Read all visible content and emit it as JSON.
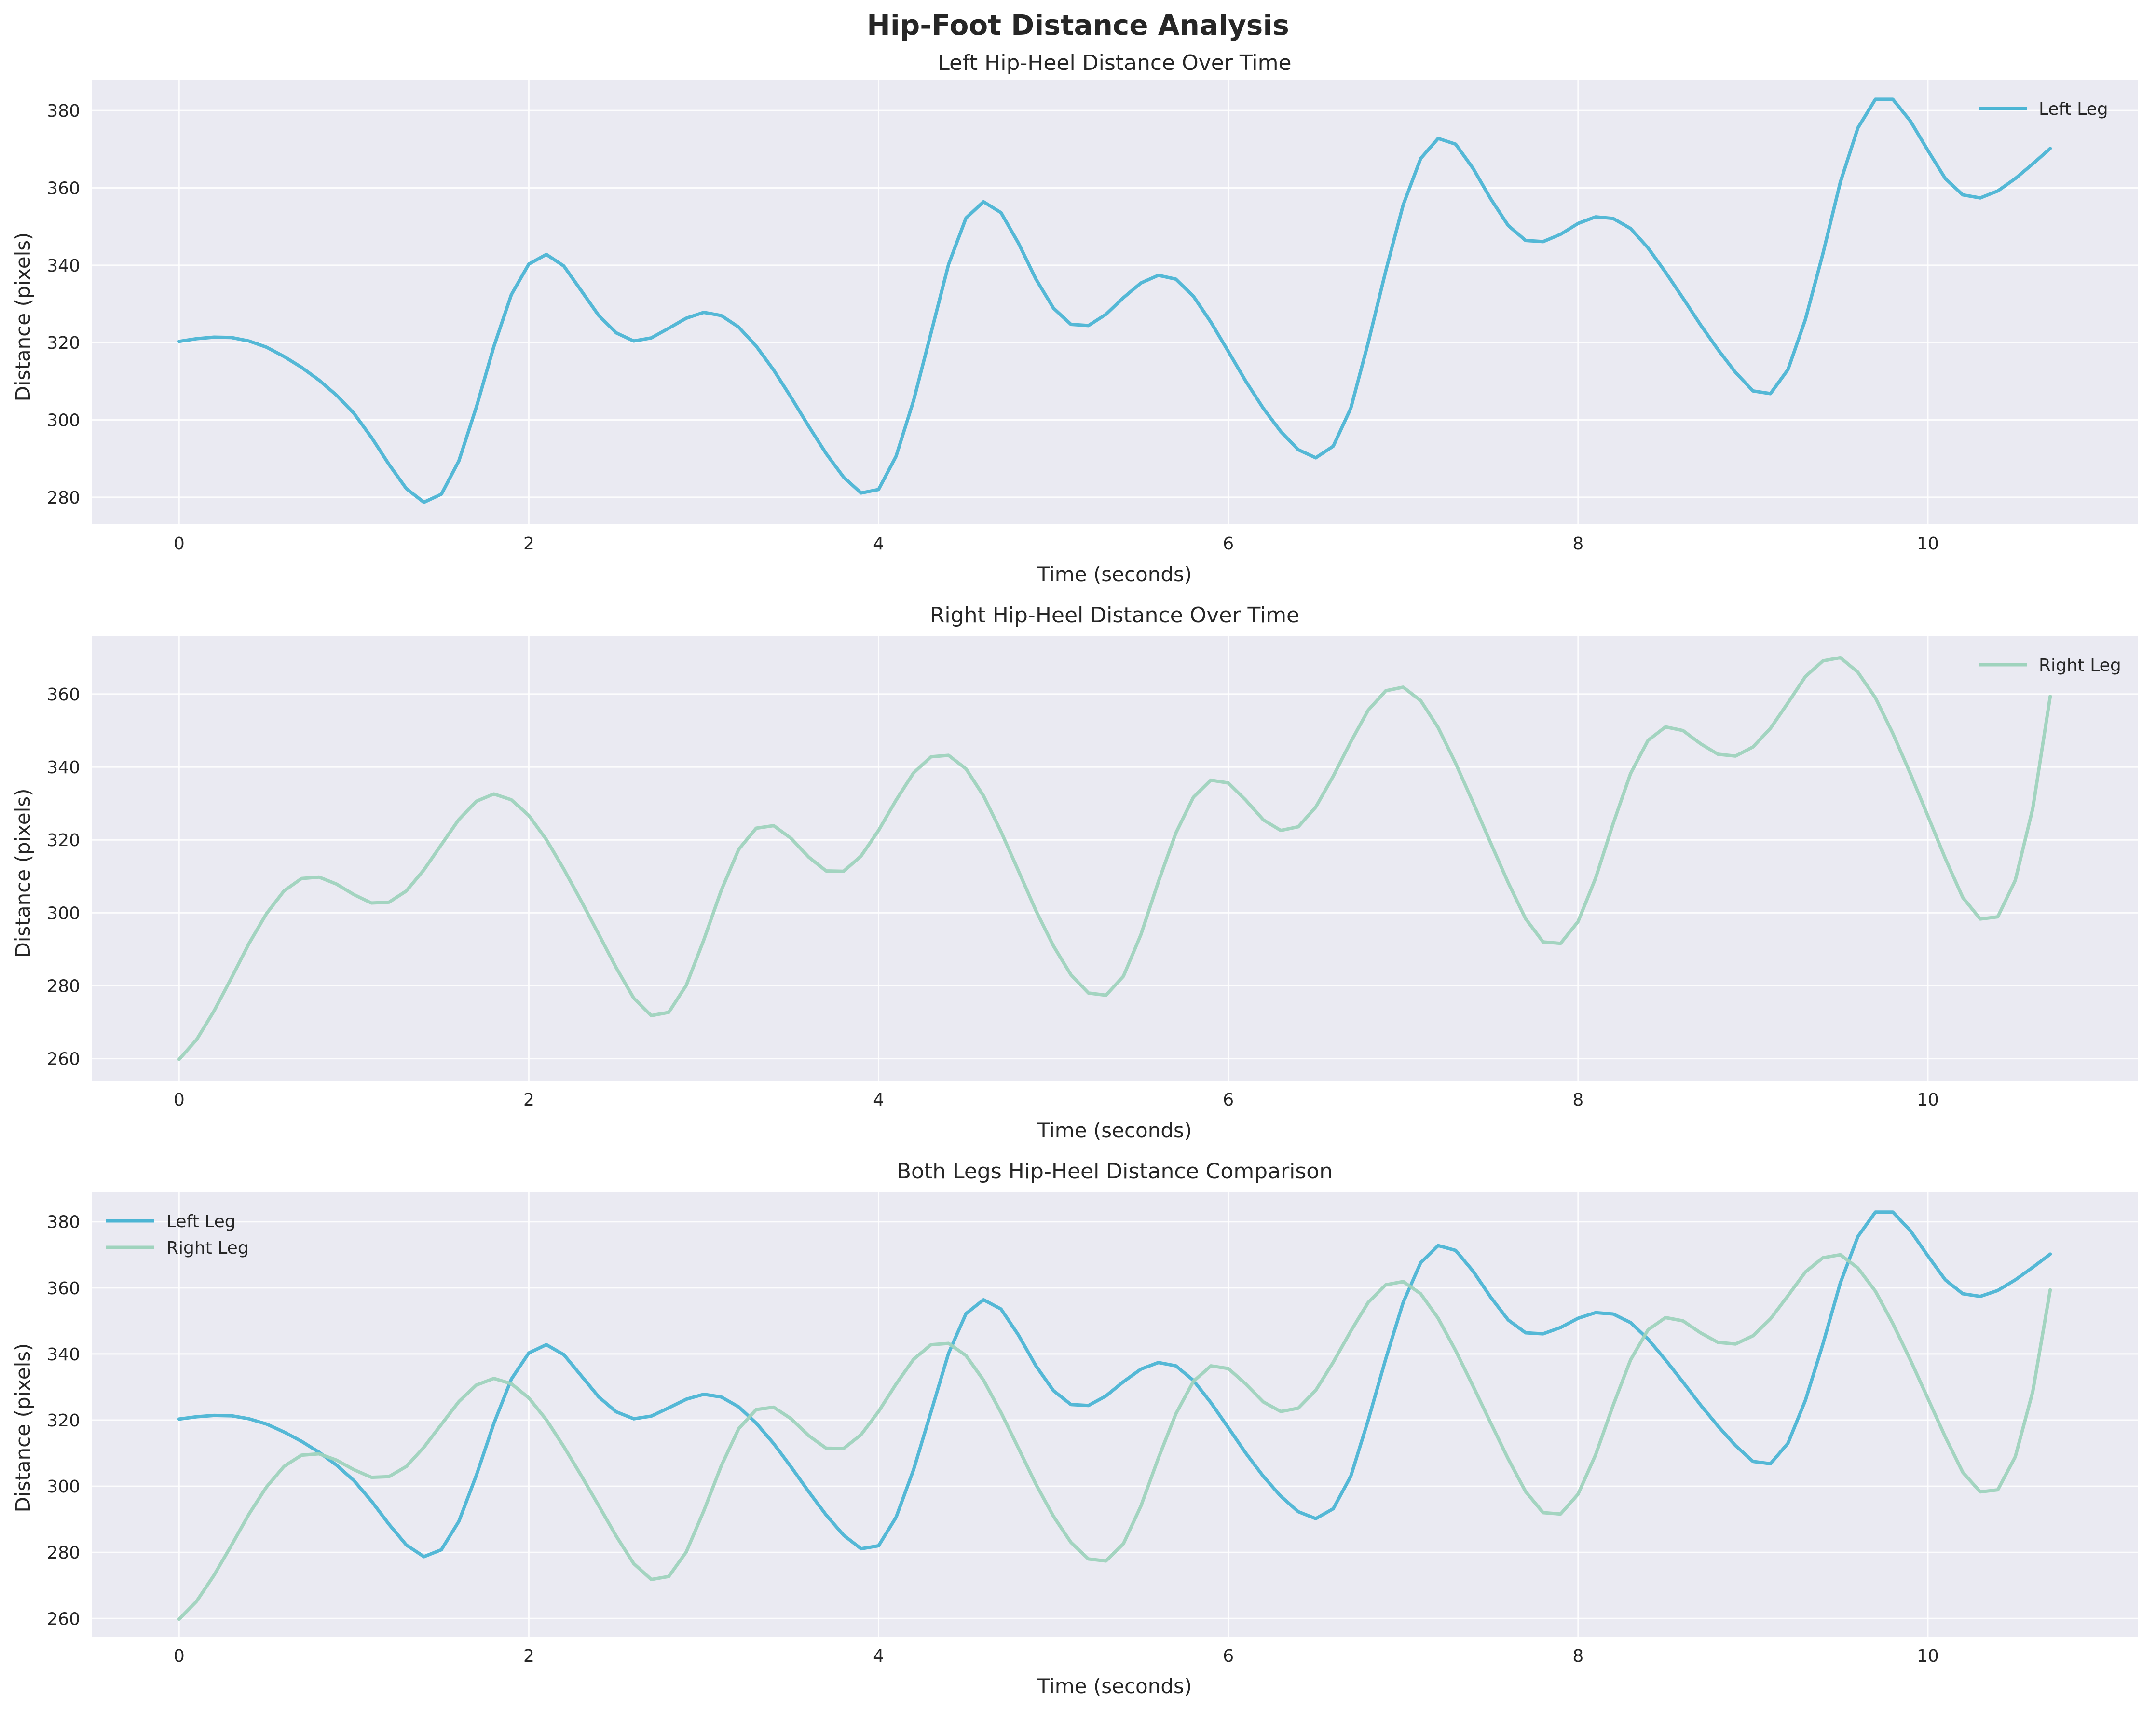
{
  "suptitle": "Hip-Foot Distance Analysis",
  "colors": {
    "left": "#4cb5d4",
    "right": "#9fd3bd",
    "background": "#eaeaf2"
  },
  "chart_data": [
    {
      "type": "line",
      "title": "Left Hip-Heel Distance Over Time",
      "xlabel": "Time (seconds)",
      "ylabel": "Distance (pixels)",
      "xlim": [
        -0.5,
        11.2
      ],
      "ylim": [
        273,
        388
      ],
      "xticks": [
        0,
        2,
        4,
        6,
        8,
        10
      ],
      "yticks": [
        280,
        300,
        320,
        340,
        360,
        380
      ],
      "grid": true,
      "legend": "top-right",
      "series": [
        {
          "name": "Left Leg",
          "color": "#4cb5d4",
          "x": [
            0,
            0.1,
            0.2,
            0.3,
            0.4,
            0.5,
            0.6,
            0.7,
            0.8,
            0.9,
            1.0,
            1.1,
            1.2,
            1.3,
            1.4,
            1.5,
            1.6,
            1.7,
            1.8,
            1.9,
            2.0,
            2.1,
            2.2,
            2.3,
            2.4,
            2.5,
            2.6,
            2.7,
            2.8,
            2.9,
            3.0,
            3.1,
            3.2,
            3.3,
            3.4,
            3.5,
            3.6,
            3.7,
            3.8,
            3.9,
            4.0,
            4.1,
            4.2,
            4.3,
            4.4,
            4.5,
            4.6,
            4.7,
            4.8,
            4.9,
            5.0,
            5.1,
            5.2,
            5.3,
            5.4,
            5.5,
            5.6,
            5.7,
            5.8,
            5.9,
            6.0,
            6.1,
            6.2,
            6.3,
            6.4,
            6.5,
            6.6,
            6.7,
            6.8,
            6.9,
            7.0,
            7.1,
            7.2,
            7.3,
            7.4,
            7.5,
            7.6,
            7.7,
            7.8,
            7.9,
            8.0,
            8.1,
            8.2,
            8.3,
            8.4,
            8.5,
            8.6,
            8.7,
            8.8,
            8.9,
            9.0,
            9.1,
            9.2,
            9.3,
            9.4,
            9.5,
            9.6,
            9.7,
            9.8,
            9.9,
            10.0,
            10.1,
            10.2,
            10.3,
            10.4,
            10.5,
            10.6,
            10.7
          ],
          "y": [
            320.3,
            321.0,
            321.4,
            321.3,
            320.4,
            318.8,
            316.4,
            313.6,
            310.3,
            306.4,
            301.7,
            295.5,
            288.5,
            282.2,
            278.7,
            280.8,
            289.4,
            303.3,
            319.0,
            332.4,
            340.3,
            342.8,
            339.8,
            333.4,
            327.0,
            322.5,
            320.4,
            321.2,
            323.7,
            326.3,
            327.8,
            327.0,
            324.0,
            319.1,
            312.9,
            305.8,
            298.4,
            291.3,
            285.2,
            281.1,
            282.0,
            290.6,
            305.0,
            322.5,
            340.2,
            352.2,
            356.4,
            353.6,
            345.7,
            336.4,
            328.9,
            324.7,
            324.4,
            327.3,
            331.6,
            335.4,
            337.4,
            336.4,
            332.0,
            325.3,
            317.7,
            310.0,
            303.0,
            297.0,
            292.3,
            290.2,
            293.2,
            303.0,
            320.0,
            338.5,
            355.6,
            367.6,
            372.8,
            371.3,
            365.0,
            357.2,
            350.3,
            346.4,
            346.1,
            348.0,
            350.8,
            352.5,
            352.1,
            349.5,
            344.5,
            338.2,
            331.5,
            324.6,
            318.2,
            312.3,
            307.5,
            306.8,
            313.0,
            326.0,
            343.0,
            361.5,
            375.5,
            382.9,
            382.9,
            377.3,
            369.7,
            362.4,
            358.2,
            357.4,
            359.2,
            362.4,
            366.2,
            370.2
          ]
        }
      ]
    },
    {
      "type": "line",
      "title": "Right Hip-Heel Distance Over Time",
      "xlabel": "Time (seconds)",
      "ylabel": "Distance (pixels)",
      "xlim": [
        -0.5,
        11.2
      ],
      "ylim": [
        254,
        376
      ],
      "xticks": [
        0,
        2,
        4,
        6,
        8,
        10
      ],
      "yticks": [
        260,
        280,
        300,
        320,
        340,
        360
      ],
      "grid": true,
      "legend": "top-right",
      "series": [
        {
          "name": "Right Leg",
          "color": "#9fd3bd",
          "x": [
            0,
            0.1,
            0.2,
            0.3,
            0.4,
            0.5,
            0.6,
            0.7,
            0.8,
            0.9,
            1.0,
            1.1,
            1.2,
            1.3,
            1.4,
            1.5,
            1.6,
            1.7,
            1.8,
            1.9,
            2.0,
            2.1,
            2.2,
            2.3,
            2.4,
            2.5,
            2.6,
            2.7,
            2.8,
            2.9,
            3.0,
            3.1,
            3.2,
            3.3,
            3.4,
            3.5,
            3.6,
            3.7,
            3.8,
            3.9,
            4.0,
            4.1,
            4.2,
            4.3,
            4.4,
            4.5,
            4.6,
            4.7,
            4.8,
            4.9,
            5.0,
            5.1,
            5.2,
            5.3,
            5.4,
            5.5,
            5.6,
            5.7,
            5.8,
            5.9,
            6.0,
            6.1,
            6.2,
            6.3,
            6.4,
            6.5,
            6.6,
            6.7,
            6.8,
            6.9,
            7.0,
            7.1,
            7.2,
            7.3,
            7.4,
            7.5,
            7.6,
            7.7,
            7.8,
            7.9,
            8.0,
            8.1,
            8.2,
            8.3,
            8.4,
            8.5,
            8.6,
            8.7,
            8.8,
            8.9,
            9.0,
            9.1,
            9.2,
            9.3,
            9.4,
            9.5,
            9.6,
            9.7,
            9.8,
            9.9,
            10.0,
            10.1,
            10.2,
            10.3,
            10.4,
            10.5,
            10.6,
            10.7
          ],
          "y": [
            259.8,
            265.2,
            273.1,
            282.2,
            291.6,
            299.8,
            306.0,
            309.4,
            309.8,
            307.9,
            305.0,
            302.7,
            302.9,
            306.0,
            311.8,
            318.7,
            325.6,
            330.6,
            332.6,
            331.0,
            326.7,
            320.1,
            312.0,
            303.2,
            294.1,
            284.9,
            276.6,
            271.8,
            272.7,
            280.1,
            292.5,
            306.1,
            317.4,
            323.2,
            323.9,
            320.4,
            315.3,
            311.5,
            311.4,
            315.6,
            322.6,
            330.9,
            338.4,
            342.8,
            343.2,
            339.5,
            332.1,
            322.3,
            311.5,
            300.6,
            290.9,
            283.0,
            278.0,
            277.4,
            282.6,
            294.0,
            308.5,
            321.9,
            331.7,
            336.4,
            335.6,
            330.9,
            325.5,
            322.6,
            323.6,
            329.0,
            337.5,
            346.9,
            355.6,
            360.9,
            361.9,
            358.2,
            350.8,
            341.0,
            330.2,
            319.2,
            308.3,
            298.4,
            292.0,
            291.6,
            297.6,
            309.5,
            324.4,
            338.2,
            347.3,
            351.0,
            350.0,
            346.4,
            343.5,
            343.0,
            345.5,
            350.6,
            357.6,
            364.8,
            369.1,
            370.0,
            366.0,
            359.0,
            349.2,
            338.2,
            326.6,
            314.9,
            304.2,
            298.3,
            298.9,
            308.9,
            328.6,
            359.4
          ]
        }
      ]
    },
    {
      "type": "line",
      "title": "Both Legs Hip-Heel Distance Comparison",
      "xlabel": "Time (seconds)",
      "ylabel": "Distance (pixels)",
      "xlim": [
        -0.5,
        11.2
      ],
      "ylim": [
        254.5,
        389
      ],
      "xticks": [
        0,
        2,
        4,
        6,
        8,
        10
      ],
      "yticks": [
        260,
        280,
        300,
        320,
        340,
        360,
        380
      ],
      "grid": true,
      "legend": "top-left",
      "series": [
        {
          "name": "Left Leg",
          "color": "#4cb5d4",
          "ref": "left"
        },
        {
          "name": "Right Leg",
          "color": "#9fd3bd",
          "ref": "right"
        }
      ]
    }
  ]
}
